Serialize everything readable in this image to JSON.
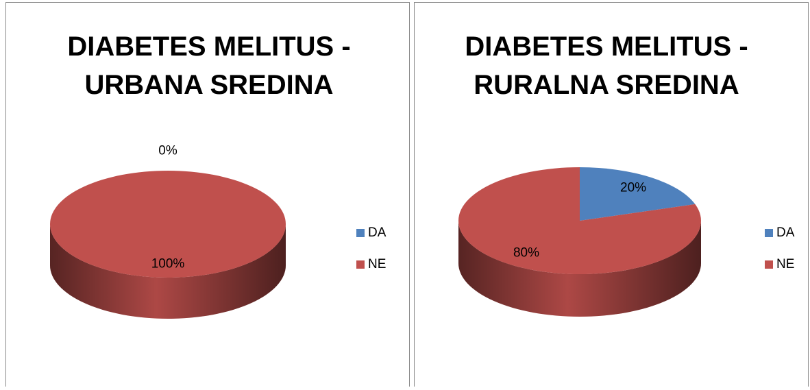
{
  "chart_data": [
    {
      "type": "pie",
      "title": "DIABETES MELITUS - URBANA SREDINA",
      "categories": [
        "DA",
        "NE"
      ],
      "values": [
        0,
        100
      ],
      "value_labels": [
        "0%",
        "100%"
      ],
      "colors": [
        "#4f81bd",
        "#c0504d"
      ],
      "legend": "right"
    },
    {
      "type": "pie",
      "title": "DIABETES MELITUS - RURALNA SREDINA",
      "categories": [
        "DA",
        "NE"
      ],
      "values": [
        20,
        80
      ],
      "value_labels": [
        "20%",
        "80%"
      ],
      "colors": [
        "#4f81bd",
        "#c0504d"
      ],
      "legend": "right"
    }
  ]
}
